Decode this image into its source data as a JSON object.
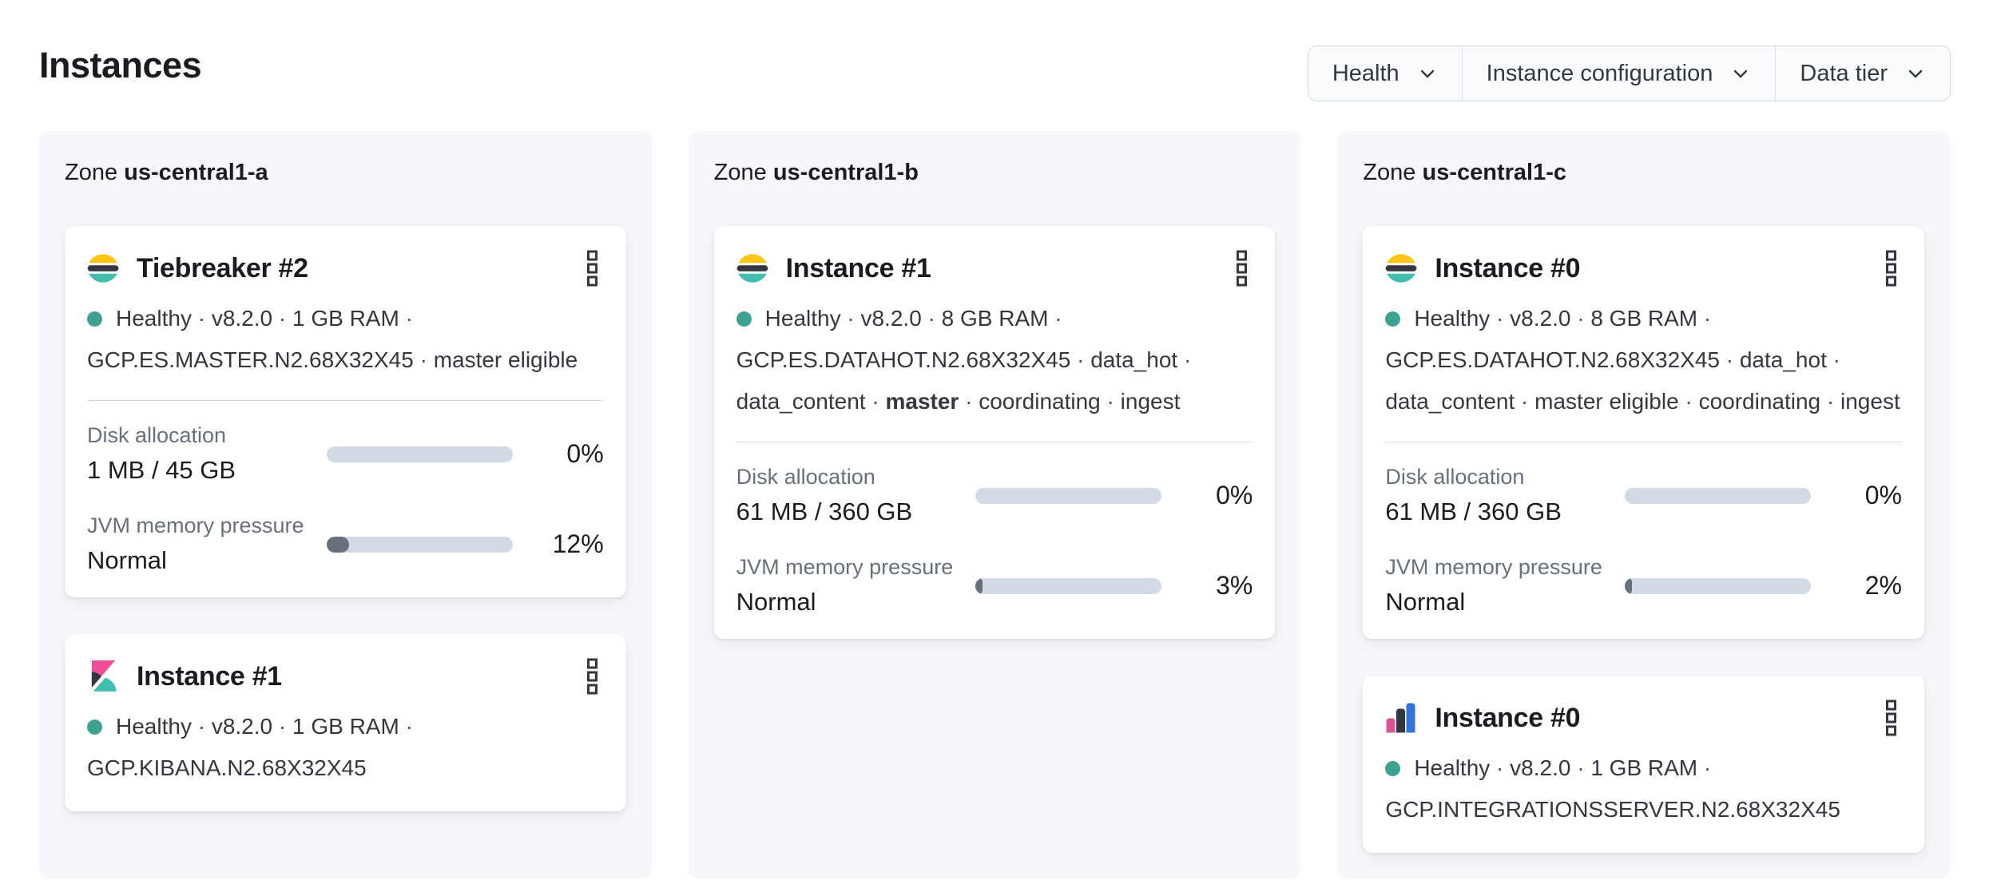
{
  "page": {
    "title": "Instances"
  },
  "filters": [
    {
      "id": "health",
      "label": "Health"
    },
    {
      "id": "instance-configuration",
      "label": "Instance configuration"
    },
    {
      "id": "data-tier",
      "label": "Data tier"
    }
  ],
  "colors": {
    "health_success": "#3EA293",
    "bar_track": "#d3dae6",
    "bar_fill": "#69707d",
    "panel_bg": "#f5f7fa",
    "elastic_yellow": "#FEC514",
    "elastic_dark": "#343741",
    "elastic_teal": "#40BEB0",
    "kibana_pink": "#F04E98",
    "integrations_blue": "#3373DC",
    "integrations_pink": "#DD5291"
  },
  "zones": [
    {
      "prefix": "Zone",
      "name": "us-central1-a",
      "instances": [
        {
          "logo": "elasticsearch",
          "title": "Tiebreaker #2",
          "status_lines": [
            {
              "dot": true,
              "trail": true,
              "tokens": [
                {
                  "t": "Healthy"
                },
                {
                  "t": "v8.2.0"
                },
                {
                  "t": "1 GB RAM"
                }
              ]
            },
            {
              "dot": false,
              "trail": false,
              "tokens": [
                {
                  "t": "GCP.ES.MASTER.N2.68X32X45"
                },
                {
                  "t": "master eligible"
                }
              ]
            }
          ],
          "metrics": [
            {
              "label": "Disk allocation",
              "value": "1 MB / 45 GB",
              "percent": 0,
              "percent_label": "0%"
            },
            {
              "label": "JVM memory pressure",
              "value": "Normal",
              "percent": 12,
              "percent_label": "12%"
            }
          ]
        },
        {
          "logo": "kibana",
          "title": "Instance #1",
          "status_lines": [
            {
              "dot": true,
              "trail": true,
              "tokens": [
                {
                  "t": "Healthy"
                },
                {
                  "t": "v8.2.0"
                },
                {
                  "t": "1 GB RAM"
                }
              ]
            },
            {
              "dot": false,
              "trail": false,
              "tokens": [
                {
                  "t": "GCP.KIBANA.N2.68X32X45"
                }
              ]
            }
          ],
          "metrics": []
        }
      ]
    },
    {
      "prefix": "Zone",
      "name": "us-central1-b",
      "instances": [
        {
          "logo": "elasticsearch",
          "title": "Instance #1",
          "status_lines": [
            {
              "dot": true,
              "trail": true,
              "tokens": [
                {
                  "t": "Healthy"
                },
                {
                  "t": "v8.2.0"
                },
                {
                  "t": "8 GB RAM"
                }
              ]
            },
            {
              "dot": false,
              "trail": true,
              "tokens": [
                {
                  "t": "GCP.ES.DATAHOT.N2.68X32X45"
                },
                {
                  "t": "data_hot"
                }
              ]
            },
            {
              "dot": false,
              "trail": false,
              "tokens": [
                {
                  "t": "data_content"
                },
                {
                  "t": "master",
                  "b": true
                },
                {
                  "t": "coordinating"
                },
                {
                  "t": "ingest"
                }
              ]
            }
          ],
          "metrics": [
            {
              "label": "Disk allocation",
              "value": "61 MB / 360 GB",
              "percent": 0,
              "percent_label": "0%"
            },
            {
              "label": "JVM memory pressure",
              "value": "Normal",
              "percent": 3,
              "percent_label": "3%"
            }
          ]
        }
      ]
    },
    {
      "prefix": "Zone",
      "name": "us-central1-c",
      "instances": [
        {
          "logo": "elasticsearch",
          "title": "Instance #0",
          "status_lines": [
            {
              "dot": true,
              "trail": true,
              "tokens": [
                {
                  "t": "Healthy"
                },
                {
                  "t": "v8.2.0"
                },
                {
                  "t": "8 GB RAM"
                }
              ]
            },
            {
              "dot": false,
              "trail": true,
              "tokens": [
                {
                  "t": "GCP.ES.DATAHOT.N2.68X32X45"
                },
                {
                  "t": "data_hot"
                }
              ]
            },
            {
              "dot": false,
              "trail": false,
              "tokens": [
                {
                  "t": "data_content"
                },
                {
                  "t": "master eligible"
                },
                {
                  "t": "coordinating"
                },
                {
                  "t": "ingest"
                }
              ]
            }
          ],
          "metrics": [
            {
              "label": "Disk allocation",
              "value": "61 MB / 360 GB",
              "percent": 0,
              "percent_label": "0%"
            },
            {
              "label": "JVM memory pressure",
              "value": "Normal",
              "percent": 2,
              "percent_label": "2%"
            }
          ]
        },
        {
          "logo": "integrations-server",
          "title": "Instance #0",
          "status_lines": [
            {
              "dot": true,
              "trail": true,
              "tokens": [
                {
                  "t": "Healthy"
                },
                {
                  "t": "v8.2.0"
                },
                {
                  "t": "1 GB RAM"
                }
              ]
            },
            {
              "dot": false,
              "trail": false,
              "tokens": [
                {
                  "t": "GCP.INTEGRATIONSSERVER.N2.68X32X45"
                }
              ]
            }
          ],
          "metrics": []
        }
      ]
    }
  ]
}
